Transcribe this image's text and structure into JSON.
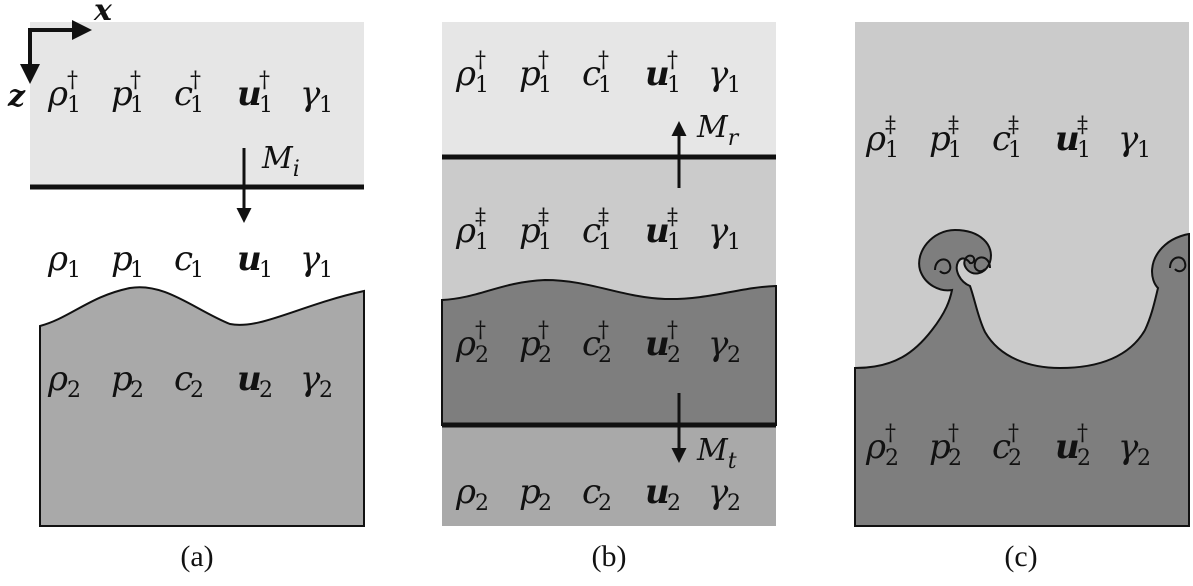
{
  "axes": {
    "x_label": "x",
    "z_label": "z"
  },
  "panels": [
    {
      "caption": "(a)",
      "shock_label": {
        "base": "M",
        "sub": "i"
      },
      "regions": [
        {
          "fill": "#e6e6e6",
          "symbols": [
            {
              "base": "ρ",
              "sub": "1",
              "sup": "†"
            },
            {
              "base": "p",
              "sub": "1",
              "sup": "†"
            },
            {
              "base": "c",
              "sub": "1",
              "sup": "†"
            },
            {
              "base": "u",
              "sub": "1",
              "sup": "†",
              "bold": true
            },
            {
              "base": "γ",
              "sub": "1",
              "sup": ""
            }
          ]
        },
        {
          "fill": "#ffffff",
          "symbols": [
            {
              "base": "ρ",
              "sub": "1",
              "sup": ""
            },
            {
              "base": "p",
              "sub": "1",
              "sup": ""
            },
            {
              "base": "c",
              "sub": "1",
              "sup": ""
            },
            {
              "base": "u",
              "sub": "1",
              "sup": "",
              "bold": true
            },
            {
              "base": "γ",
              "sub": "1",
              "sup": ""
            }
          ]
        },
        {
          "fill": "#a9a9a9",
          "symbols": [
            {
              "base": "ρ",
              "sub": "2",
              "sup": ""
            },
            {
              "base": "p",
              "sub": "2",
              "sup": ""
            },
            {
              "base": "c",
              "sub": "2",
              "sup": ""
            },
            {
              "base": "u",
              "sub": "2",
              "sup": "",
              "bold": true
            },
            {
              "base": "γ",
              "sub": "2",
              "sup": ""
            }
          ]
        }
      ]
    },
    {
      "caption": "(b)",
      "reflected_label": {
        "base": "M",
        "sub": "r"
      },
      "transmitted_label": {
        "base": "M",
        "sub": "t"
      },
      "regions": [
        {
          "fill": "#e6e6e6",
          "symbols": [
            {
              "base": "ρ",
              "sub": "1",
              "sup": "†"
            },
            {
              "base": "p",
              "sub": "1",
              "sup": "†"
            },
            {
              "base": "c",
              "sub": "1",
              "sup": "†"
            },
            {
              "base": "u",
              "sub": "1",
              "sup": "†",
              "bold": true
            },
            {
              "base": "γ",
              "sub": "1",
              "sup": ""
            }
          ]
        },
        {
          "fill": "#cbcbcb",
          "symbols": [
            {
              "base": "ρ",
              "sub": "1",
              "sup": "‡"
            },
            {
              "base": "p",
              "sub": "1",
              "sup": "‡"
            },
            {
              "base": "c",
              "sub": "1",
              "sup": "‡"
            },
            {
              "base": "u",
              "sub": "1",
              "sup": "‡",
              "bold": true
            },
            {
              "base": "γ",
              "sub": "1",
              "sup": ""
            }
          ]
        },
        {
          "fill": "#7e7e7e",
          "symbols": [
            {
              "base": "ρ",
              "sub": "2",
              "sup": "†"
            },
            {
              "base": "p",
              "sub": "2",
              "sup": "†"
            },
            {
              "base": "c",
              "sub": "2",
              "sup": "†"
            },
            {
              "base": "u",
              "sub": "2",
              "sup": "†",
              "bold": true
            },
            {
              "base": "γ",
              "sub": "2",
              "sup": ""
            }
          ]
        },
        {
          "fill": "#a9a9a9",
          "symbols": [
            {
              "base": "ρ",
              "sub": "2",
              "sup": ""
            },
            {
              "base": "p",
              "sub": "2",
              "sup": ""
            },
            {
              "base": "c",
              "sub": "2",
              "sup": ""
            },
            {
              "base": "u",
              "sub": "2",
              "sup": "",
              "bold": true
            },
            {
              "base": "γ",
              "sub": "2",
              "sup": ""
            }
          ]
        }
      ]
    },
    {
      "caption": "(c)",
      "regions": [
        {
          "fill": "#cbcbcb",
          "symbols": [
            {
              "base": "ρ",
              "sub": "1",
              "sup": "‡"
            },
            {
              "base": "p",
              "sub": "1",
              "sup": "‡"
            },
            {
              "base": "c",
              "sub": "1",
              "sup": "‡"
            },
            {
              "base": "u",
              "sub": "1",
              "sup": "‡",
              "bold": true
            },
            {
              "base": "γ",
              "sub": "1",
              "sup": ""
            }
          ]
        },
        {
          "fill": "#7e7e7e",
          "symbols": [
            {
              "base": "ρ",
              "sub": "2",
              "sup": "†"
            },
            {
              "base": "p",
              "sub": "2",
              "sup": "†"
            },
            {
              "base": "c",
              "sub": "2",
              "sup": "†"
            },
            {
              "base": "u",
              "sub": "2",
              "sup": "†",
              "bold": true
            },
            {
              "base": "γ",
              "sub": "2",
              "sup": ""
            }
          ]
        }
      ]
    }
  ]
}
